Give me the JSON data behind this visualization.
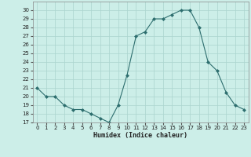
{
  "x": [
    0,
    1,
    2,
    3,
    4,
    5,
    6,
    7,
    8,
    9,
    10,
    11,
    12,
    13,
    14,
    15,
    16,
    17,
    18,
    19,
    20,
    21,
    22,
    23
  ],
  "y": [
    21,
    20,
    20,
    19,
    18.5,
    18.5,
    18,
    17.5,
    17,
    19,
    22.5,
    27,
    27.5,
    29,
    29,
    29.5,
    30,
    30,
    28,
    24,
    23,
    20.5,
    19,
    18.5
  ],
  "line_color": "#2d6e6e",
  "marker": "D",
  "marker_size": 2,
  "bg_color": "#cceee8",
  "grid_color": "#aad4ce",
  "xlabel": "Humidex (Indice chaleur)",
  "ylim": [
    17,
    31
  ],
  "yticks": [
    17,
    18,
    19,
    20,
    21,
    22,
    23,
    24,
    25,
    26,
    27,
    28,
    29,
    30
  ],
  "xlim": [
    -0.5,
    23.5
  ],
  "xticks": [
    0,
    1,
    2,
    3,
    4,
    5,
    6,
    7,
    8,
    9,
    10,
    11,
    12,
    13,
    14,
    15,
    16,
    17,
    18,
    19,
    20,
    21,
    22,
    23
  ]
}
